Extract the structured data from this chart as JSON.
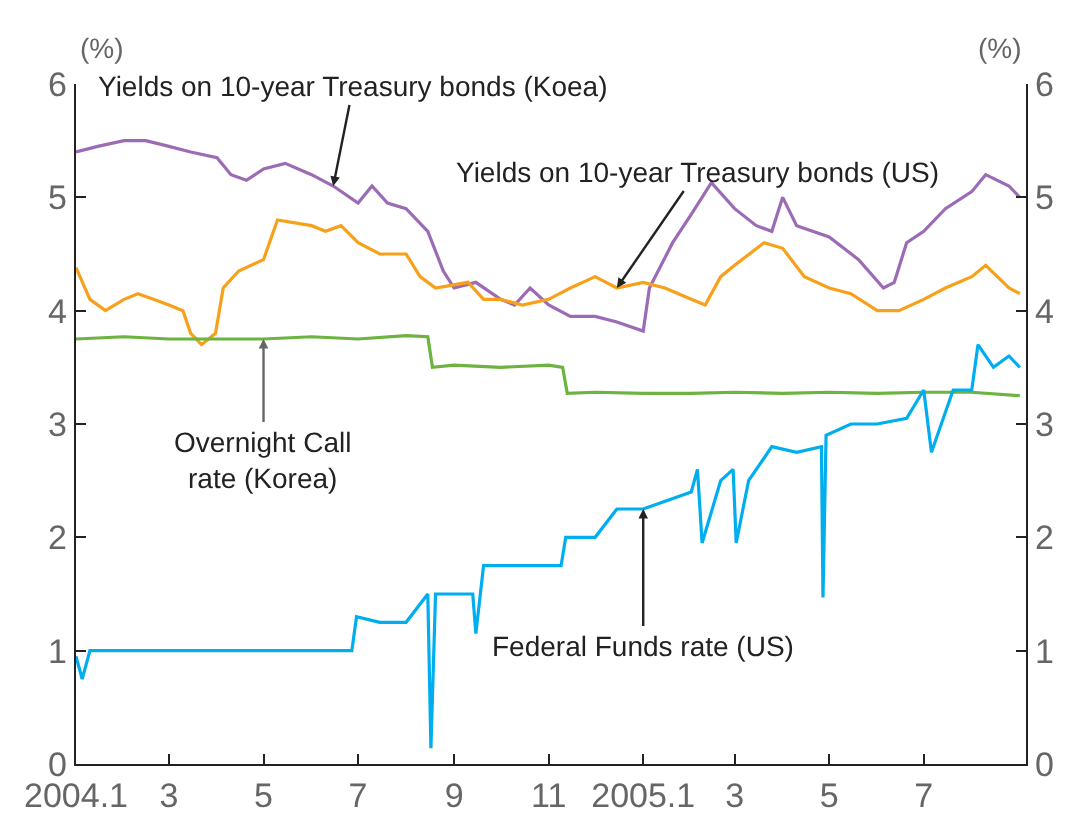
{
  "chart_data": {
    "type": "line",
    "ylabel": "(%)",
    "y2label": "(%)",
    "xlim": [
      "2004-01-01",
      "2005-09-05"
    ],
    "xticks": [
      {
        "value": "2004-01-01",
        "label": "2004.1"
      },
      {
        "value": "2004-03-01",
        "label": "3"
      },
      {
        "value": "2004-05-01",
        "label": "5"
      },
      {
        "value": "2004-07-01",
        "label": "7"
      },
      {
        "value": "2004-09-01",
        "label": "9"
      },
      {
        "value": "2004-11-01",
        "label": "11"
      },
      {
        "value": "2005-01-01",
        "label": "2005.1"
      },
      {
        "value": "2005-03-01",
        "label": "3"
      },
      {
        "value": "2005-05-01",
        "label": "5"
      },
      {
        "value": "2005-07-01",
        "label": "7"
      }
    ],
    "ylim": [
      0,
      6
    ],
    "yticks": [
      0,
      1,
      2,
      3,
      4,
      5,
      6
    ],
    "y2lim": [
      0,
      6
    ],
    "y2ticks": [
      0,
      1,
      2,
      3,
      4,
      5,
      6
    ],
    "legend": false,
    "marker": "none",
    "line_style": "solid",
    "series": [
      {
        "name": "Yields on 10-year Treasury bonds (Koea)",
        "color": "#9b6bb5",
        "x": [
          "2004-01-01",
          "2004-01-15",
          "2004-02-01",
          "2004-02-15",
          "2004-03-01",
          "2004-03-15",
          "2004-04-01",
          "2004-04-10",
          "2004-04-20",
          "2004-05-01",
          "2004-05-15",
          "2004-06-01",
          "2004-06-15",
          "2004-07-01",
          "2004-07-10",
          "2004-07-20",
          "2004-08-01",
          "2004-08-15",
          "2004-08-25",
          "2004-09-01",
          "2004-09-15",
          "2004-10-01",
          "2004-10-10",
          "2004-10-20",
          "2004-11-01",
          "2004-11-15",
          "2004-12-01",
          "2004-12-15",
          "2005-01-01",
          "2005-01-05",
          "2005-01-20",
          "2005-02-01",
          "2005-02-14",
          "2005-03-01",
          "2005-03-15",
          "2005-03-25",
          "2005-04-01",
          "2005-04-10",
          "2005-05-01",
          "2005-05-20",
          "2005-06-05",
          "2005-06-12",
          "2005-06-20",
          "2005-07-01",
          "2005-07-15",
          "2005-08-01",
          "2005-08-10",
          "2005-08-25",
          "2005-09-01"
        ],
        "values": [
          5.4,
          5.45,
          5.5,
          5.5,
          5.45,
          5.4,
          5.35,
          5.2,
          5.15,
          5.25,
          5.3,
          5.2,
          5.1,
          4.95,
          5.1,
          4.95,
          4.9,
          4.7,
          4.35,
          4.2,
          4.25,
          4.1,
          4.05,
          4.2,
          4.05,
          3.95,
          3.95,
          3.9,
          3.82,
          4.2,
          4.6,
          4.85,
          5.13,
          4.9,
          4.75,
          4.7,
          5.0,
          4.75,
          4.65,
          4.45,
          4.2,
          4.25,
          4.6,
          4.7,
          4.9,
          5.05,
          5.2,
          5.1,
          5.0
        ]
      },
      {
        "name": "Yields on 10-year Treasury bonds (US)",
        "color": "#f7a11a",
        "x": [
          "2004-01-01",
          "2004-01-10",
          "2004-01-20",
          "2004-02-01",
          "2004-02-10",
          "2004-02-20",
          "2004-03-01",
          "2004-03-10",
          "2004-03-15",
          "2004-03-22",
          "2004-03-31",
          "2004-04-05",
          "2004-04-15",
          "2004-05-01",
          "2004-05-10",
          "2004-06-01",
          "2004-06-10",
          "2004-06-20",
          "2004-07-01",
          "2004-07-15",
          "2004-08-01",
          "2004-08-10",
          "2004-08-20",
          "2004-09-10",
          "2004-09-20",
          "2004-10-01",
          "2004-10-15",
          "2004-11-01",
          "2004-11-15",
          "2004-12-01",
          "2004-12-15",
          "2005-01-01",
          "2005-01-15",
          "2005-02-01",
          "2005-02-10",
          "2005-02-20",
          "2005-03-01",
          "2005-03-20",
          "2005-04-01",
          "2005-04-15",
          "2005-05-01",
          "2005-05-15",
          "2005-06-01",
          "2005-06-15",
          "2005-07-01",
          "2005-07-15",
          "2005-08-01",
          "2005-08-10",
          "2005-08-25",
          "2005-09-01"
        ],
        "values": [
          4.38,
          4.1,
          4.0,
          4.1,
          4.15,
          4.1,
          4.05,
          4.0,
          3.8,
          3.7,
          3.8,
          4.2,
          4.35,
          4.45,
          4.8,
          4.75,
          4.7,
          4.75,
          4.6,
          4.5,
          4.5,
          4.3,
          4.2,
          4.25,
          4.1,
          4.1,
          4.05,
          4.1,
          4.2,
          4.3,
          4.2,
          4.25,
          4.2,
          4.1,
          4.05,
          4.3,
          4.4,
          4.6,
          4.55,
          4.3,
          4.2,
          4.15,
          4.0,
          4.0,
          4.1,
          4.2,
          4.3,
          4.4,
          4.2,
          4.15
        ]
      },
      {
        "name": "Overnight Call rate (Korea)",
        "color": "#6cb33f",
        "x": [
          "2004-01-01",
          "2004-02-01",
          "2004-03-01",
          "2004-04-01",
          "2004-05-01",
          "2004-06-01",
          "2004-07-01",
          "2004-08-01",
          "2004-08-15",
          "2004-08-18",
          "2004-09-01",
          "2004-10-01",
          "2004-11-01",
          "2004-11-10",
          "2004-11-13",
          "2004-12-01",
          "2005-01-01",
          "2005-02-01",
          "2005-03-01",
          "2005-04-01",
          "2005-05-01",
          "2005-06-01",
          "2005-07-01",
          "2005-08-01",
          "2005-09-01"
        ],
        "values": [
          3.75,
          3.77,
          3.75,
          3.75,
          3.75,
          3.77,
          3.75,
          3.78,
          3.77,
          3.5,
          3.52,
          3.5,
          3.52,
          3.5,
          3.27,
          3.28,
          3.27,
          3.27,
          3.28,
          3.27,
          3.28,
          3.27,
          3.28,
          3.28,
          3.25
        ]
      },
      {
        "name": "Federal Funds rate (US)",
        "color": "#00aeef",
        "x": [
          "2004-01-01",
          "2004-01-05",
          "2004-01-10",
          "2004-02-01",
          "2004-03-01",
          "2004-04-01",
          "2004-05-01",
          "2004-06-01",
          "2004-06-27",
          "2004-06-30",
          "2004-07-15",
          "2004-08-01",
          "2004-08-15",
          "2004-08-17",
          "2004-08-20",
          "2004-09-01",
          "2004-09-13",
          "2004-09-15",
          "2004-09-20",
          "2004-10-01",
          "2004-11-09",
          "2004-11-12",
          "2004-12-01",
          "2004-12-15",
          "2005-01-01",
          "2005-02-01",
          "2005-02-05",
          "2005-02-08",
          "2005-02-20",
          "2005-02-28",
          "2005-03-02",
          "2005-03-10",
          "2005-03-25",
          "2005-04-10",
          "2005-04-26",
          "2005-04-27",
          "2005-04-29",
          "2005-05-15",
          "2005-06-01",
          "2005-06-20",
          "2005-07-01",
          "2005-07-06",
          "2005-07-20",
          "2005-08-01",
          "2005-08-05",
          "2005-08-15",
          "2005-08-25",
          "2005-09-01"
        ],
        "values": [
          0.95,
          0.75,
          1.0,
          1.0,
          1.0,
          1.0,
          1.0,
          1.0,
          1.0,
          1.3,
          1.25,
          1.25,
          1.5,
          0.14,
          1.5,
          1.5,
          1.5,
          1.15,
          1.75,
          1.75,
          1.75,
          2.0,
          2.0,
          2.25,
          2.25,
          2.4,
          2.6,
          1.95,
          2.5,
          2.6,
          1.95,
          2.5,
          2.8,
          2.75,
          2.8,
          1.47,
          2.9,
          3.0,
          3.0,
          3.05,
          3.3,
          2.75,
          3.3,
          3.3,
          3.7,
          3.5,
          3.6,
          3.5
        ]
      }
    ]
  }
}
